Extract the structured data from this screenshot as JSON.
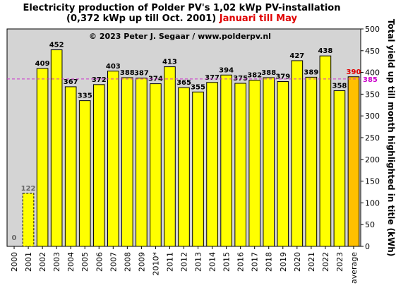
{
  "title_line1": "Electricity production  of Polder PV's 1,02 kWp PV-installation",
  "title_line2a": "(0,372 kWp up till Oct. 2001)",
  "title_line2b": "Januari till May",
  "copyright": "© 2023 Peter J. Segaar / www.polderpv.nl",
  "colors": {
    "plot_bg": "#d4d4d4",
    "bar": "#ffff00",
    "bar_avg": "#ffc000",
    "avg_line": "#cc33cc",
    "avg_label": "#cc00cc",
    "avg_value_label": "#e00000"
  },
  "chart_data": {
    "type": "bar",
    "categories": [
      "2000",
      "2001",
      "2002",
      "2003",
      "2004",
      "2005",
      "2006",
      "2007",
      "2008",
      "2009",
      "2010*",
      "2011",
      "2012",
      "2013",
      "2014",
      "2015",
      "2016",
      "2017",
      "2018",
      "2019",
      "2020",
      "2021",
      "2022",
      "2023",
      "average"
    ],
    "values": [
      0,
      122,
      409,
      452,
      367,
      335,
      372,
      403,
      388,
      387,
      374,
      413,
      365,
      355,
      377,
      394,
      375,
      382,
      388,
      379,
      427,
      389,
      438,
      358,
      390
    ],
    "value_labels": [
      "0",
      "122",
      "409",
      "452",
      "367",
      "335",
      "372",
      "403",
      "388",
      "387",
      "374",
      "413",
      "365",
      "355",
      "377",
      "394",
      "375",
      "382",
      "388",
      "379",
      "427",
      "389",
      "438",
      "358",
      "390"
    ],
    "partial_bars": [
      "2001"
    ],
    "average_line_value": 385,
    "average_line_label": "385",
    "ylabel": "Total yield up till month highlighted in title (kWh)",
    "ylim": [
      0,
      500
    ],
    "yticks": [
      "0",
      "50",
      "100",
      "150",
      "200",
      "250",
      "300",
      "350",
      "400",
      "450",
      "500"
    ],
    "y_axis_side": "right",
    "grid": false
  }
}
